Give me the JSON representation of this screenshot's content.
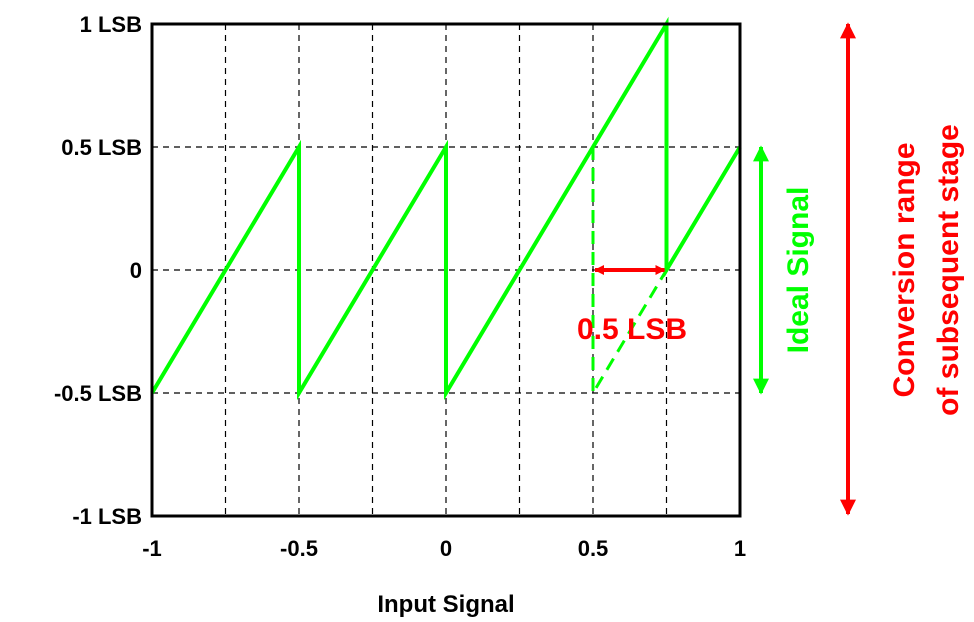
{
  "chart_data": {
    "type": "line",
    "xlabel": "Input Signal",
    "ylabel": "",
    "xlim": [
      -1,
      1
    ],
    "ylim": [
      -1,
      1
    ],
    "grid": true,
    "x_ticks": [
      -1,
      -0.75,
      -0.5,
      -0.25,
      0,
      0.25,
      0.5,
      0.75,
      1
    ],
    "y_ticks": [
      -1,
      -0.5,
      0,
      0.5,
      1
    ],
    "x_tick_labels": [
      {
        "value": -1,
        "label": "-1"
      },
      {
        "value": -0.5,
        "label": "-0.5"
      },
      {
        "value": 0,
        "label": "0"
      },
      {
        "value": 0.5,
        "label": "0.5"
      },
      {
        "value": 1,
        "label": "1"
      }
    ],
    "y_tick_labels": [
      {
        "value": 1,
        "label": "1 LSB"
      },
      {
        "value": 0.5,
        "label": "0.5 LSB"
      },
      {
        "value": 0,
        "label": "0"
      },
      {
        "value": -0.5,
        "label": "-0.5 LSB"
      },
      {
        "value": -1,
        "label": "-1 LSB"
      }
    ],
    "series": [
      {
        "color": "#00ff00",
        "style": "solid",
        "points": [
          [
            -1,
            -0.5
          ],
          [
            -0.5,
            0.5
          ],
          [
            -0.5,
            -0.5
          ],
          [
            0,
            0.5
          ],
          [
            0,
            -0.5
          ],
          [
            0.75,
            1
          ],
          [
            0.75,
            0
          ],
          [
            1,
            0.5
          ]
        ]
      },
      {
        "color": "#00ff00",
        "style": "dashed",
        "points": [
          [
            0.5,
            0.5
          ],
          [
            0.5,
            -0.5
          ],
          [
            0.75,
            0
          ]
        ]
      }
    ],
    "annotations": {
      "offset_label": "0.5 LSB",
      "offset_arrow": {
        "from": [
          0.5,
          0
        ],
        "to": [
          0.75,
          0
        ],
        "color": "#ff0000"
      },
      "ideal_label": "Ideal Signal",
      "ideal_arrow": {
        "from": 0.5,
        "to": -0.5,
        "color": "#00ff00"
      },
      "conversion_label_line1": "Conversion range",
      "conversion_label_line2": "of subsequent stage",
      "conversion_arrow_color": "#ff0000"
    }
  }
}
